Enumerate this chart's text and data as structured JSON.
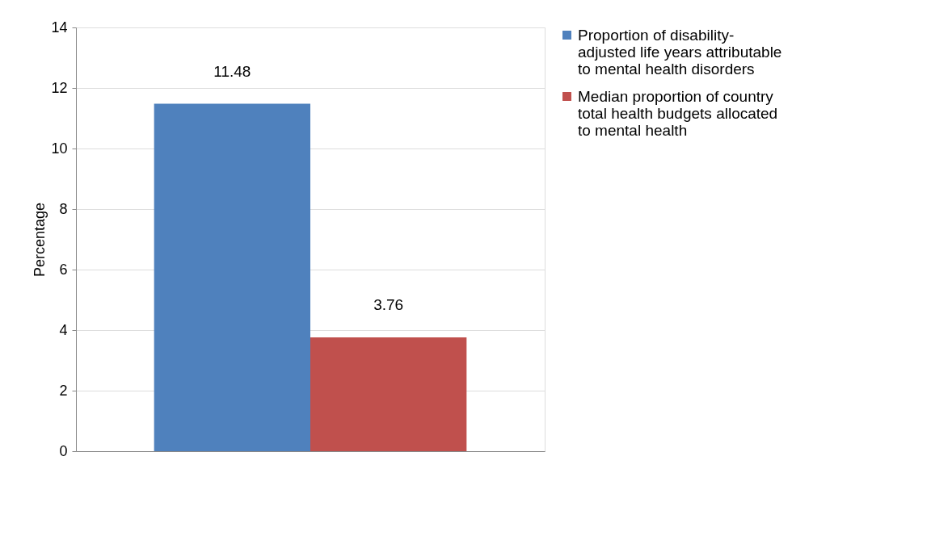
{
  "chart_data": {
    "type": "bar",
    "ylabel": "Percentage",
    "categories": [
      null
    ],
    "series": [
      {
        "name": "Proportion of disability-adjusted life years attributable to mental health disorders",
        "color": "#4f81bd",
        "values": [
          11.48
        ]
      },
      {
        "name": "Median proportion of country total health budgets allocated to mental health",
        "color": "#c0504d",
        "values": [
          3.76
        ]
      }
    ],
    "ylim": [
      0,
      14
    ],
    "yticks": [
      0,
      2,
      4,
      6,
      8,
      10,
      12,
      14
    ],
    "grid": "y",
    "legend": "right",
    "data_labels": true
  }
}
